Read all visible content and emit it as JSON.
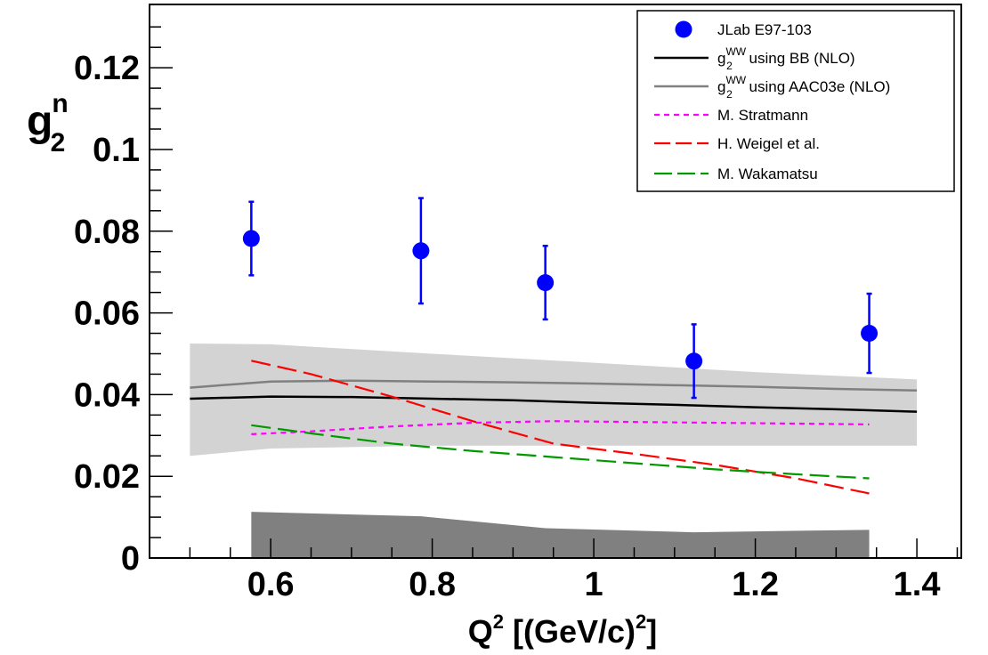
{
  "chart_data": {
    "type": "scatter",
    "title": "",
    "xlabel": {
      "main": "Q",
      "sup": "2",
      "rest": " [(GeV/c)",
      "sup2": "2",
      "end": "]"
    },
    "ylabel": {
      "main": "g",
      "sup": "n",
      "sub": "2"
    },
    "xlim": [
      0.45,
      1.455
    ],
    "ylim": [
      0,
      0.1355
    ],
    "x_ticks": [
      {
        "value": 0.6,
        "label": "0.6"
      },
      {
        "value": 0.8,
        "label": "0.8"
      },
      {
        "value": 1.0,
        "label": "1"
      },
      {
        "value": 1.2,
        "label": "1.2"
      },
      {
        "value": 1.4,
        "label": "1.4"
      }
    ],
    "y_ticks": [
      {
        "value": 0,
        "label": "0"
      },
      {
        "value": 0.02,
        "label": "0.02"
      },
      {
        "value": 0.04,
        "label": "0.04"
      },
      {
        "value": 0.06,
        "label": "0.06"
      },
      {
        "value": 0.08,
        "label": "0.08"
      },
      {
        "value": 0.1,
        "label": "0.1"
      },
      {
        "value": 0.12,
        "label": "0.12"
      }
    ],
    "grid": false,
    "legend_position": "top-right",
    "legend": [
      {
        "key": "data",
        "style": "marker",
        "color": "#0000ff",
        "text": "JLab E97-103"
      },
      {
        "key": "bb",
        "style": "solid",
        "color": "#000000",
        "text_main": "g",
        "text_sup": "WW",
        "text_sub": "2",
        "text_rest": " using BB (NLO)"
      },
      {
        "key": "aac",
        "style": "solid",
        "color": "#808080",
        "text_main": "g",
        "text_sup": "WW",
        "text_sub": "2",
        "text_rest": " using AAC03e (NLO)"
      },
      {
        "key": "stratmann",
        "style": "dotted",
        "color": "#ff00ff",
        "text": "M. Stratmann"
      },
      {
        "key": "weigel",
        "style": "dashed",
        "color": "#ff0000",
        "text": "H. Weigel et al."
      },
      {
        "key": "wakamatsu",
        "style": "longdash",
        "color": "#009900",
        "text": "M. Wakamatsu"
      }
    ],
    "data_points": {
      "color": "#0000ff",
      "x": [
        0.576,
        0.786,
        0.94,
        1.124,
        1.341
      ],
      "y": [
        0.0782,
        0.0752,
        0.0674,
        0.0482,
        0.055
      ],
      "err": [
        0.009,
        0.0129,
        0.009,
        0.009,
        0.0097
      ]
    },
    "systematic_band": {
      "color": "#808080",
      "x": [
        0.576,
        0.786,
        0.94,
        1.124,
        1.341
      ],
      "y": [
        0.0113,
        0.0102,
        0.0073,
        0.0063,
        0.0069
      ]
    },
    "ww_uncertainty_band": {
      "color": "#d3d3d3",
      "x": [
        0.5,
        0.6,
        0.8,
        1.0,
        1.2,
        1.4
      ],
      "upper": [
        0.0525,
        0.0523,
        0.05,
        0.0478,
        0.0455,
        0.0437
      ],
      "lower": [
        0.025,
        0.0268,
        0.0275,
        0.0275,
        0.0275,
        0.0275
      ]
    },
    "series": [
      {
        "key": "bb",
        "color": "#000000",
        "dash": "",
        "width": 2.5,
        "x": [
          0.5,
          0.6,
          0.7,
          0.8,
          0.9,
          1.0,
          1.1,
          1.2,
          1.3,
          1.4
        ],
        "y": [
          0.039,
          0.0395,
          0.0394,
          0.039,
          0.0386,
          0.038,
          0.0375,
          0.0369,
          0.0364,
          0.0358
        ]
      },
      {
        "key": "aac",
        "color": "#808080",
        "dash": "",
        "width": 2.5,
        "x": [
          0.5,
          0.6,
          0.7,
          0.8,
          0.9,
          1.0,
          1.1,
          1.2,
          1.3,
          1.4
        ],
        "y": [
          0.0417,
          0.0432,
          0.0434,
          0.0432,
          0.043,
          0.0427,
          0.0423,
          0.0419,
          0.0414,
          0.041
        ]
      },
      {
        "key": "stratmann",
        "color": "#ff00ff",
        "dash": "6,5",
        "width": 2.2,
        "x": [
          0.576,
          0.65,
          0.75,
          0.85,
          0.95,
          1.05,
          1.15,
          1.25,
          1.341
        ],
        "y": [
          0.0303,
          0.031,
          0.0322,
          0.0331,
          0.0335,
          0.0333,
          0.0331,
          0.0329,
          0.0327
        ]
      },
      {
        "key": "weigel",
        "color": "#ff0000",
        "dash": "22,8",
        "width": 2.2,
        "x": [
          0.576,
          0.65,
          0.75,
          0.85,
          0.95,
          1.05,
          1.15,
          1.25,
          1.341
        ],
        "y": [
          0.0483,
          0.045,
          0.0395,
          0.0335,
          0.028,
          0.0255,
          0.0228,
          0.0195,
          0.0158
        ]
      },
      {
        "key": "wakamatsu",
        "color": "#009900",
        "dash": "22,8",
        "width": 2.2,
        "x": [
          0.576,
          0.65,
          0.75,
          0.85,
          0.95,
          1.05,
          1.15,
          1.25,
          1.341
        ],
        "y": [
          0.0325,
          0.0305,
          0.028,
          0.0262,
          0.0247,
          0.0232,
          0.0217,
          0.0205,
          0.0195
        ]
      }
    ]
  }
}
